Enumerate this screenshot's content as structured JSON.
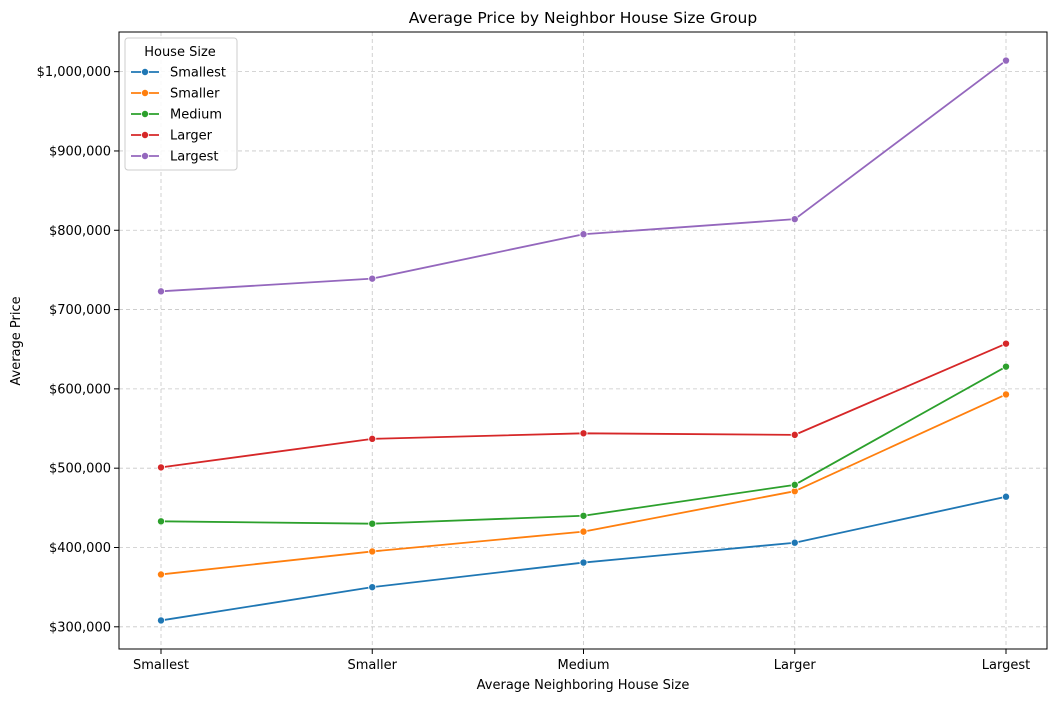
{
  "chart_data": {
    "type": "line",
    "title": "Average Price by Neighbor House Size Group",
    "xlabel": "Average Neighboring House Size",
    "ylabel": "Average Price",
    "categories": [
      "Smallest",
      "Smaller",
      "Medium",
      "Larger",
      "Largest"
    ],
    "ylim": [
      272000,
      1050000
    ],
    "yticks": [
      300000,
      400000,
      500000,
      600000,
      700000,
      800000,
      900000,
      1000000
    ],
    "ytick_labels": [
      "$300,000",
      "$400,000",
      "$500,000",
      "$600,000",
      "$700,000",
      "$800,000",
      "$900,000",
      "$1,000,000"
    ],
    "grid": true,
    "legend": {
      "title": "House Size",
      "placement": "top-left"
    },
    "series": [
      {
        "name": "Smallest",
        "color": "#1f77b4",
        "values": [
          308000,
          350000,
          381000,
          406000,
          464000
        ]
      },
      {
        "name": "Smaller",
        "color": "#ff7f0e",
        "values": [
          366000,
          395000,
          420000,
          471000,
          593000
        ]
      },
      {
        "name": "Medium",
        "color": "#2ca02c",
        "values": [
          433000,
          430000,
          440000,
          479000,
          628000
        ]
      },
      {
        "name": "Larger",
        "color": "#d62728",
        "values": [
          501000,
          537000,
          544000,
          542000,
          657000
        ]
      },
      {
        "name": "Largest",
        "color": "#9467bd",
        "values": [
          723000,
          739000,
          795000,
          814000,
          1014000
        ]
      }
    ]
  }
}
